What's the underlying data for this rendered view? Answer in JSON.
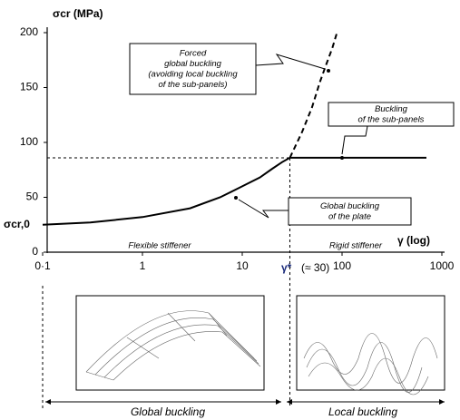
{
  "chart_data": {
    "type": "line",
    "y_label": "σcr (MPa)",
    "y0_label": "σcr,0",
    "x_label": "γ (log)",
    "log_x": true,
    "xlim": [
      0.1,
      1000
    ],
    "xticks": [
      {
        "value": 0.1,
        "label": "0·1"
      },
      1,
      10,
      100,
      1000
    ],
    "ylim": [
      0,
      200
    ],
    "yticks": [
      0,
      50,
      100,
      150,
      200
    ],
    "series": [
      {
        "style": "solid",
        "color": "#000000",
        "x": [
          0.1,
          0.3,
          1,
          3,
          6,
          10,
          15,
          20,
          25,
          30,
          100,
          700
        ],
        "values": [
          25,
          27,
          32,
          40,
          50,
          60,
          68,
          76,
          82,
          86,
          86,
          86
        ]
      },
      {
        "style": "dashed",
        "color": "#000000",
        "x": [
          30,
          40,
          50,
          60,
          70,
          80,
          89
        ],
        "values": [
          86,
          110,
          132,
          155,
          172,
          186,
          200
        ]
      }
    ],
    "guides": {
      "x": 30,
      "y": 86
    },
    "gamma_star": "γ*",
    "gamma_star_note": "(≈ 30)",
    "regions": [
      "Flexible stiffener",
      "Rigid stiffener"
    ],
    "annotations": [
      {
        "lines": [
          "Forced",
          "global buckling",
          "(avoiding local buckling",
          "of the sub-panels)"
        ]
      },
      {
        "lines": [
          "Buckling",
          "of the sub-panels"
        ]
      },
      {
        "lines": [
          "Global buckling",
          "of the plate"
        ]
      }
    ],
    "bottom_labels": [
      "Global buckling",
      "Local buckling"
    ]
  }
}
